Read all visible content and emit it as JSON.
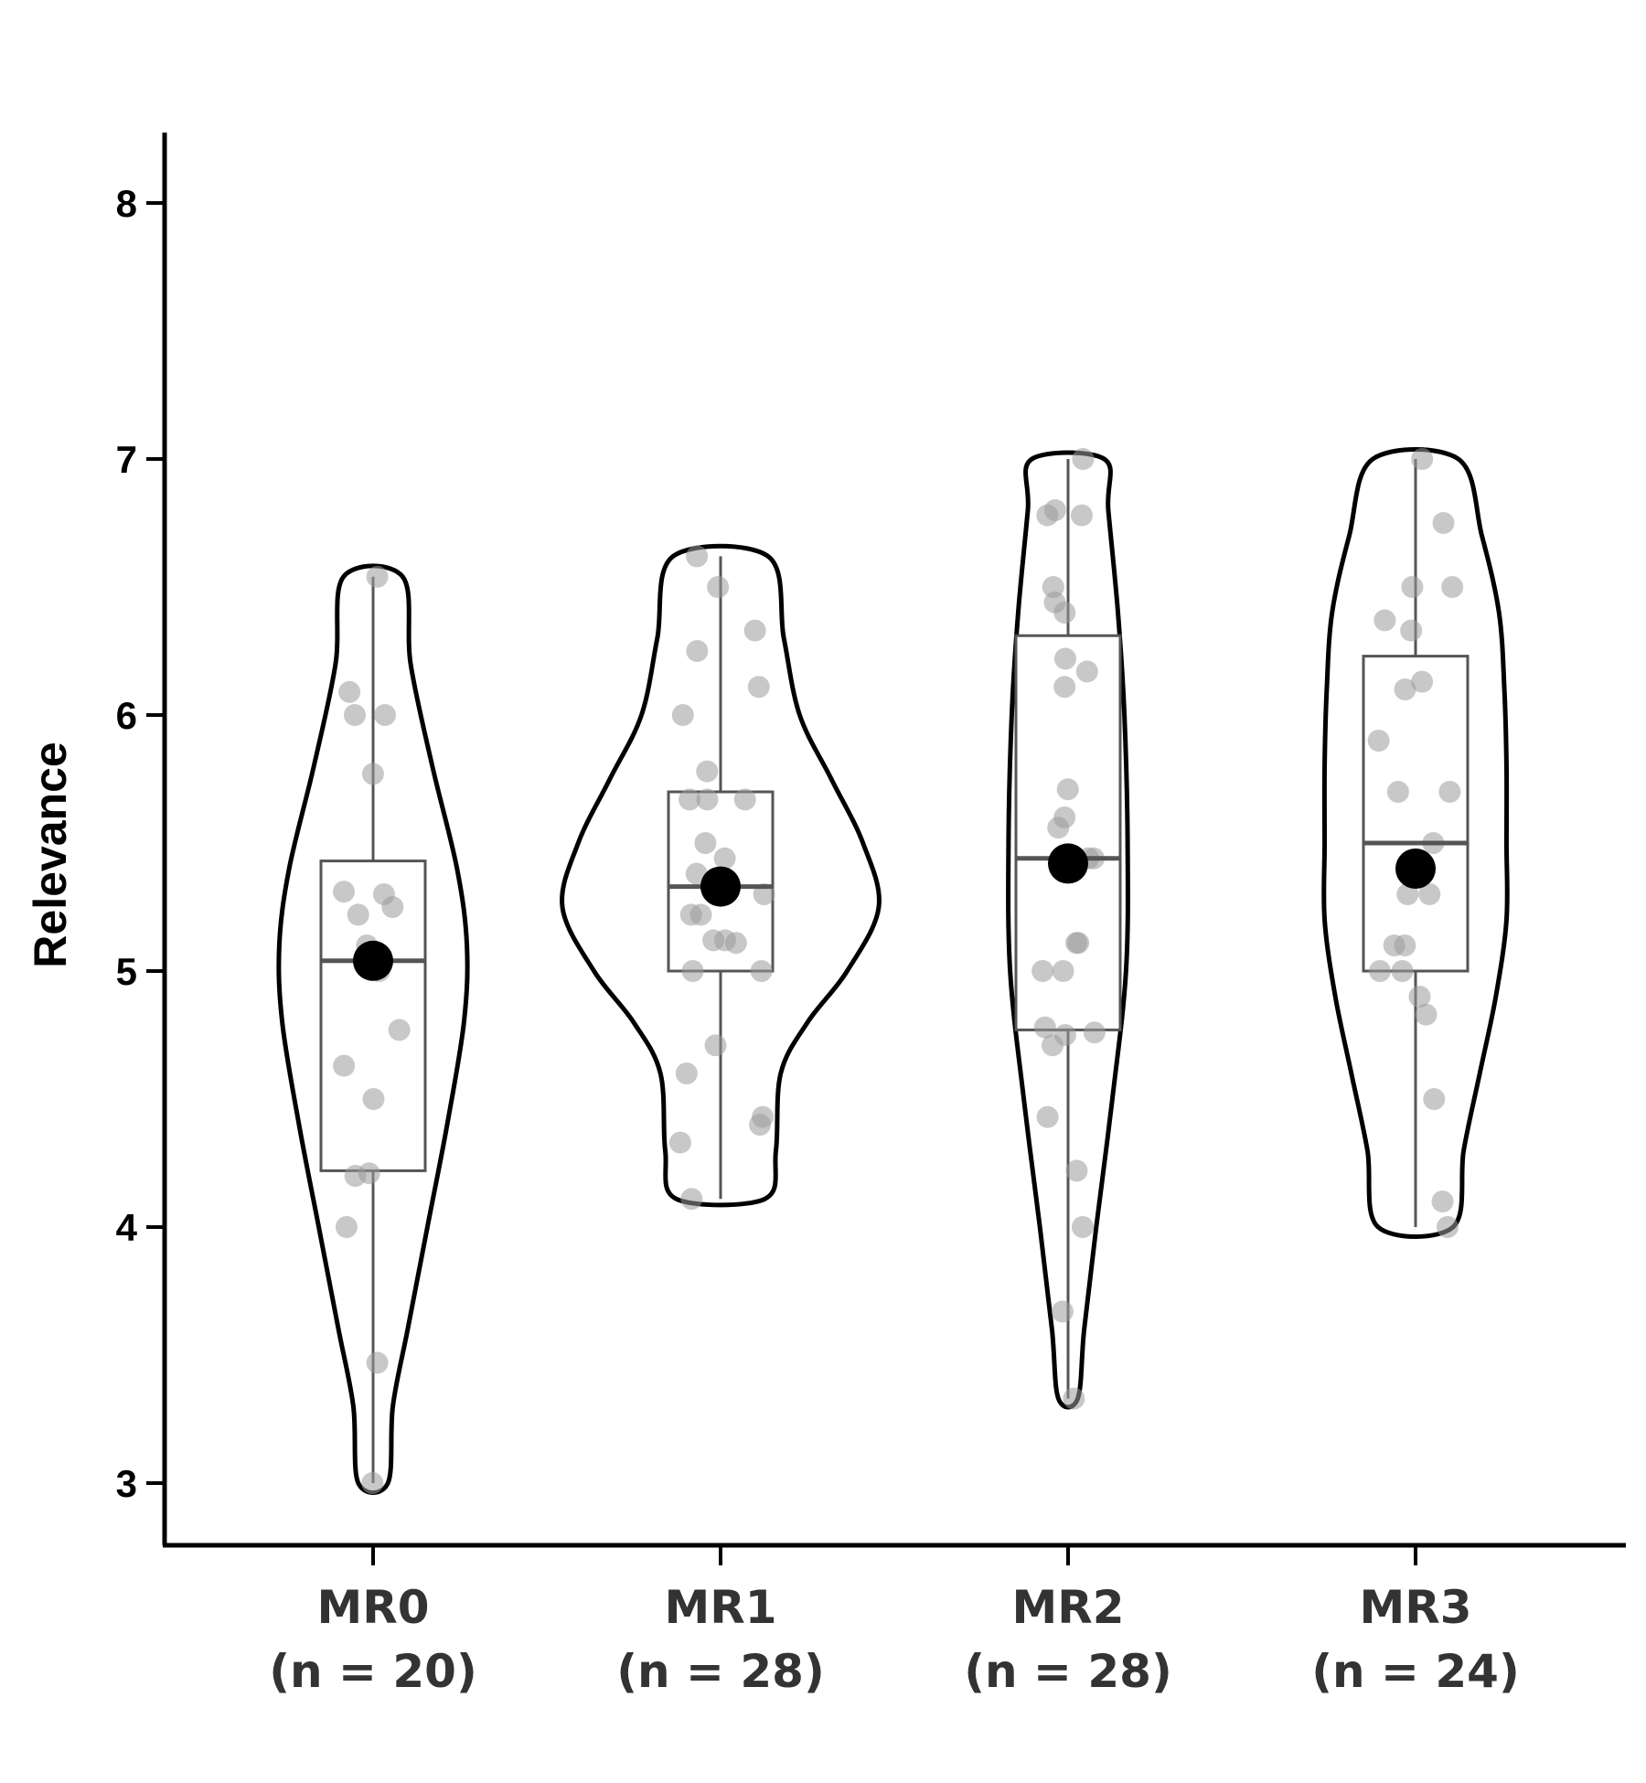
{
  "chart_data": {
    "type": "violin",
    "title": "",
    "xlabel": "",
    "ylabel": "Relevance",
    "ylim": [
      2.75,
      8.25
    ],
    "yticks": [
      "3",
      "4",
      "5",
      "6",
      "7",
      "8"
    ],
    "grid": false,
    "legend": "none",
    "colors": {
      "violin_stroke": "#000000",
      "violin_fill": "#ffffff",
      "box_stroke": "#555555",
      "points": "#9a9a9a",
      "mean": "#000000"
    },
    "groups": [
      {
        "category": "MR0",
        "n_label": "(n = 20)",
        "min": 3.0,
        "q1": 4.22,
        "median": 5.04,
        "q3": 5.43,
        "max": 6.54,
        "mean": 5.04,
        "density": [
          [
            3.0,
            0.15
          ],
          [
            3.3,
            0.2
          ],
          [
            3.6,
            0.35
          ],
          [
            4.0,
            0.55
          ],
          [
            4.4,
            0.75
          ],
          [
            4.8,
            0.92
          ],
          [
            5.1,
            0.95
          ],
          [
            5.4,
            0.85
          ],
          [
            5.8,
            0.6
          ],
          [
            6.2,
            0.38
          ],
          [
            6.54,
            0.3
          ]
        ],
        "points": [
          3.0,
          3.47,
          4.0,
          4.2,
          4.21,
          4.5,
          4.63,
          4.77,
          5.0,
          5.1,
          5.22,
          5.25,
          5.3,
          5.31,
          5.77,
          6.0,
          6.0,
          6.09,
          6.54,
          5.05
        ]
      },
      {
        "category": "MR1",
        "n_label": "(n = 28)",
        "min": 4.11,
        "q1": 5.0,
        "median": 5.33,
        "q3": 5.7,
        "max": 6.62,
        "mean": 5.33,
        "density": [
          [
            4.11,
            0.28
          ],
          [
            4.3,
            0.35
          ],
          [
            4.6,
            0.38
          ],
          [
            4.8,
            0.55
          ],
          [
            5.0,
            0.8
          ],
          [
            5.25,
            1.0
          ],
          [
            5.5,
            0.9
          ],
          [
            5.75,
            0.7
          ],
          [
            6.0,
            0.5
          ],
          [
            6.3,
            0.4
          ],
          [
            6.62,
            0.3
          ]
        ],
        "points": [
          4.11,
          4.33,
          4.4,
          4.43,
          4.6,
          4.71,
          5.0,
          5.0,
          5.12,
          5.12,
          5.11,
          5.22,
          5.22,
          5.3,
          5.33,
          5.38,
          5.44,
          5.5,
          5.67,
          5.67,
          5.67,
          5.78,
          6.0,
          6.11,
          6.25,
          6.33,
          6.5,
          6.62
        ]
      },
      {
        "category": "MR2",
        "n_label": "(n = 28)",
        "min": 3.33,
        "q1": 4.77,
        "median": 5.44,
        "q3": 6.31,
        "max": 7.0,
        "mean": 5.42,
        "density": [
          [
            3.33,
            0.12
          ],
          [
            3.6,
            0.2
          ],
          [
            4.0,
            0.35
          ],
          [
            4.5,
            0.55
          ],
          [
            5.0,
            0.72
          ],
          [
            5.5,
            0.74
          ],
          [
            6.0,
            0.7
          ],
          [
            6.4,
            0.62
          ],
          [
            6.8,
            0.5
          ],
          [
            7.0,
            0.45
          ]
        ],
        "points": [
          3.33,
          3.67,
          4.0,
          4.22,
          4.43,
          4.71,
          4.75,
          4.78,
          5.0,
          5.0,
          5.11,
          5.11,
          5.44,
          5.56,
          5.6,
          5.71,
          6.11,
          6.17,
          6.22,
          6.4,
          6.44,
          6.5,
          6.78,
          6.78,
          6.8,
          7.0,
          5.44,
          4.76
        ]
      },
      {
        "category": "MR3",
        "n_label": "(n = 24)",
        "min": 4.0,
        "q1": 5.0,
        "median": 5.5,
        "q3": 6.23,
        "max": 7.0,
        "mean": 5.4,
        "density": [
          [
            4.0,
            0.35
          ],
          [
            4.3,
            0.45
          ],
          [
            4.6,
            0.6
          ],
          [
            4.9,
            0.75
          ],
          [
            5.2,
            0.85
          ],
          [
            5.5,
            0.85
          ],
          [
            5.8,
            0.85
          ],
          [
            6.1,
            0.83
          ],
          [
            6.4,
            0.78
          ],
          [
            6.7,
            0.62
          ],
          [
            7.0,
            0.4
          ]
        ],
        "points": [
          4.0,
          4.1,
          4.5,
          4.83,
          4.9,
          5.0,
          5.0,
          5.1,
          5.1,
          5.3,
          5.3,
          5.5,
          5.7,
          5.7,
          5.9,
          6.1,
          6.13,
          6.33,
          6.37,
          6.5,
          6.5,
          6.75,
          7.0,
          5.4
        ]
      }
    ]
  }
}
